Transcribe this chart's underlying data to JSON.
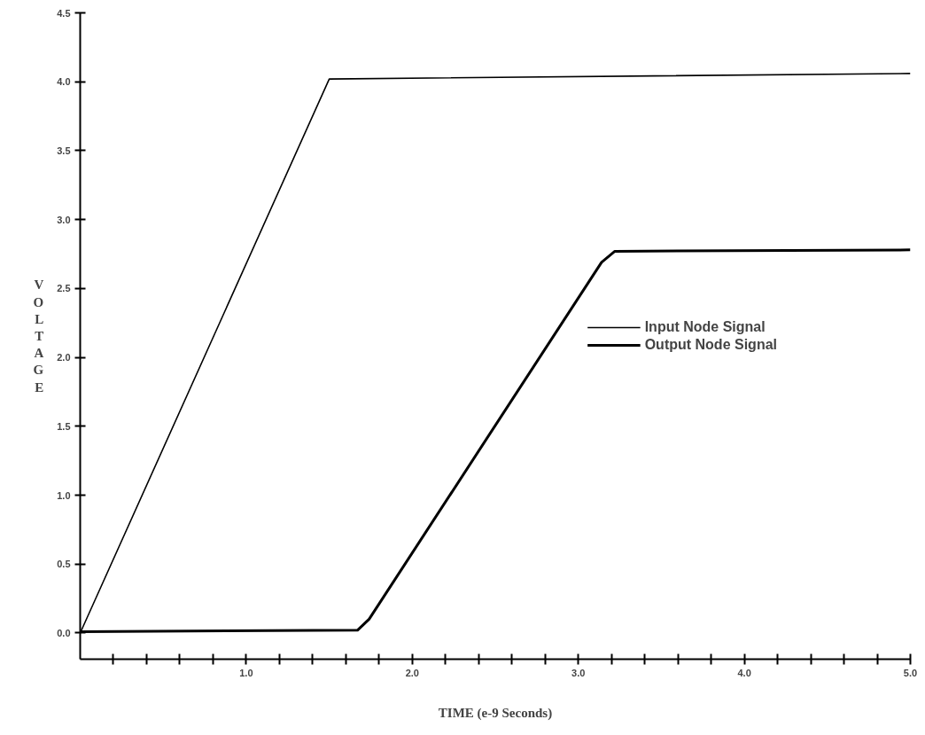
{
  "chart_data": {
    "type": "line",
    "xlabel": "TIME (e-9 Seconds)",
    "ylabel": "VOLTAGE",
    "xlim": [
      0,
      5.0
    ],
    "ylim": [
      -0.19,
      4.5
    ],
    "xticks": [
      {
        "value": 0.2,
        "label": null
      },
      {
        "value": 0.4,
        "label": null
      },
      {
        "value": 0.6,
        "label": null
      },
      {
        "value": 0.8,
        "label": null
      },
      {
        "value": 1.0,
        "label": "1.0"
      },
      {
        "value": 1.2,
        "label": null
      },
      {
        "value": 1.4,
        "label": null
      },
      {
        "value": 1.6,
        "label": null
      },
      {
        "value": 1.8,
        "label": null
      },
      {
        "value": 2.0,
        "label": "2.0"
      },
      {
        "value": 2.2,
        "label": null
      },
      {
        "value": 2.4,
        "label": null
      },
      {
        "value": 2.6,
        "label": null
      },
      {
        "value": 2.8,
        "label": null
      },
      {
        "value": 3.0,
        "label": "3.0"
      },
      {
        "value": 3.2,
        "label": null
      },
      {
        "value": 3.4,
        "label": null
      },
      {
        "value": 3.6,
        "label": null
      },
      {
        "value": 3.8,
        "label": null
      },
      {
        "value": 4.0,
        "label": "4.0"
      },
      {
        "value": 4.2,
        "label": null
      },
      {
        "value": 4.4,
        "label": null
      },
      {
        "value": 4.6,
        "label": null
      },
      {
        "value": 4.8,
        "label": null
      },
      {
        "value": 5.0,
        "label": "5.0"
      }
    ],
    "yticks": [
      {
        "value": 0,
        "label": "0.0"
      },
      {
        "value": 0.5,
        "label": "0.5"
      },
      {
        "value": 1,
        "label": "1.0"
      },
      {
        "value": 1.5,
        "label": "1.5"
      },
      {
        "value": 2,
        "label": "2.0"
      },
      {
        "value": 2.5,
        "label": "2.5"
      },
      {
        "value": 3,
        "label": "3.0"
      },
      {
        "value": 3.5,
        "label": "3.5"
      },
      {
        "value": 4,
        "label": "4.0"
      },
      {
        "value": 4.5,
        "label": "4.5"
      }
    ],
    "grid": false,
    "legend": "center right",
    "marker": "none",
    "line_style": "solid",
    "series": [
      {
        "name": "Input Node Signal",
        "color": "#000000",
        "x": [
          0,
          1.5,
          5.0
        ],
        "values": [
          0,
          4.02,
          4.06
        ]
      },
      {
        "name": "Output Node Signal",
        "color": "#000000",
        "x": [
          0,
          1.67,
          1.74,
          3.14,
          3.22,
          5.0
        ],
        "values": [
          0.01,
          0.02,
          0.1,
          2.69,
          2.77,
          2.78
        ]
      }
    ]
  }
}
